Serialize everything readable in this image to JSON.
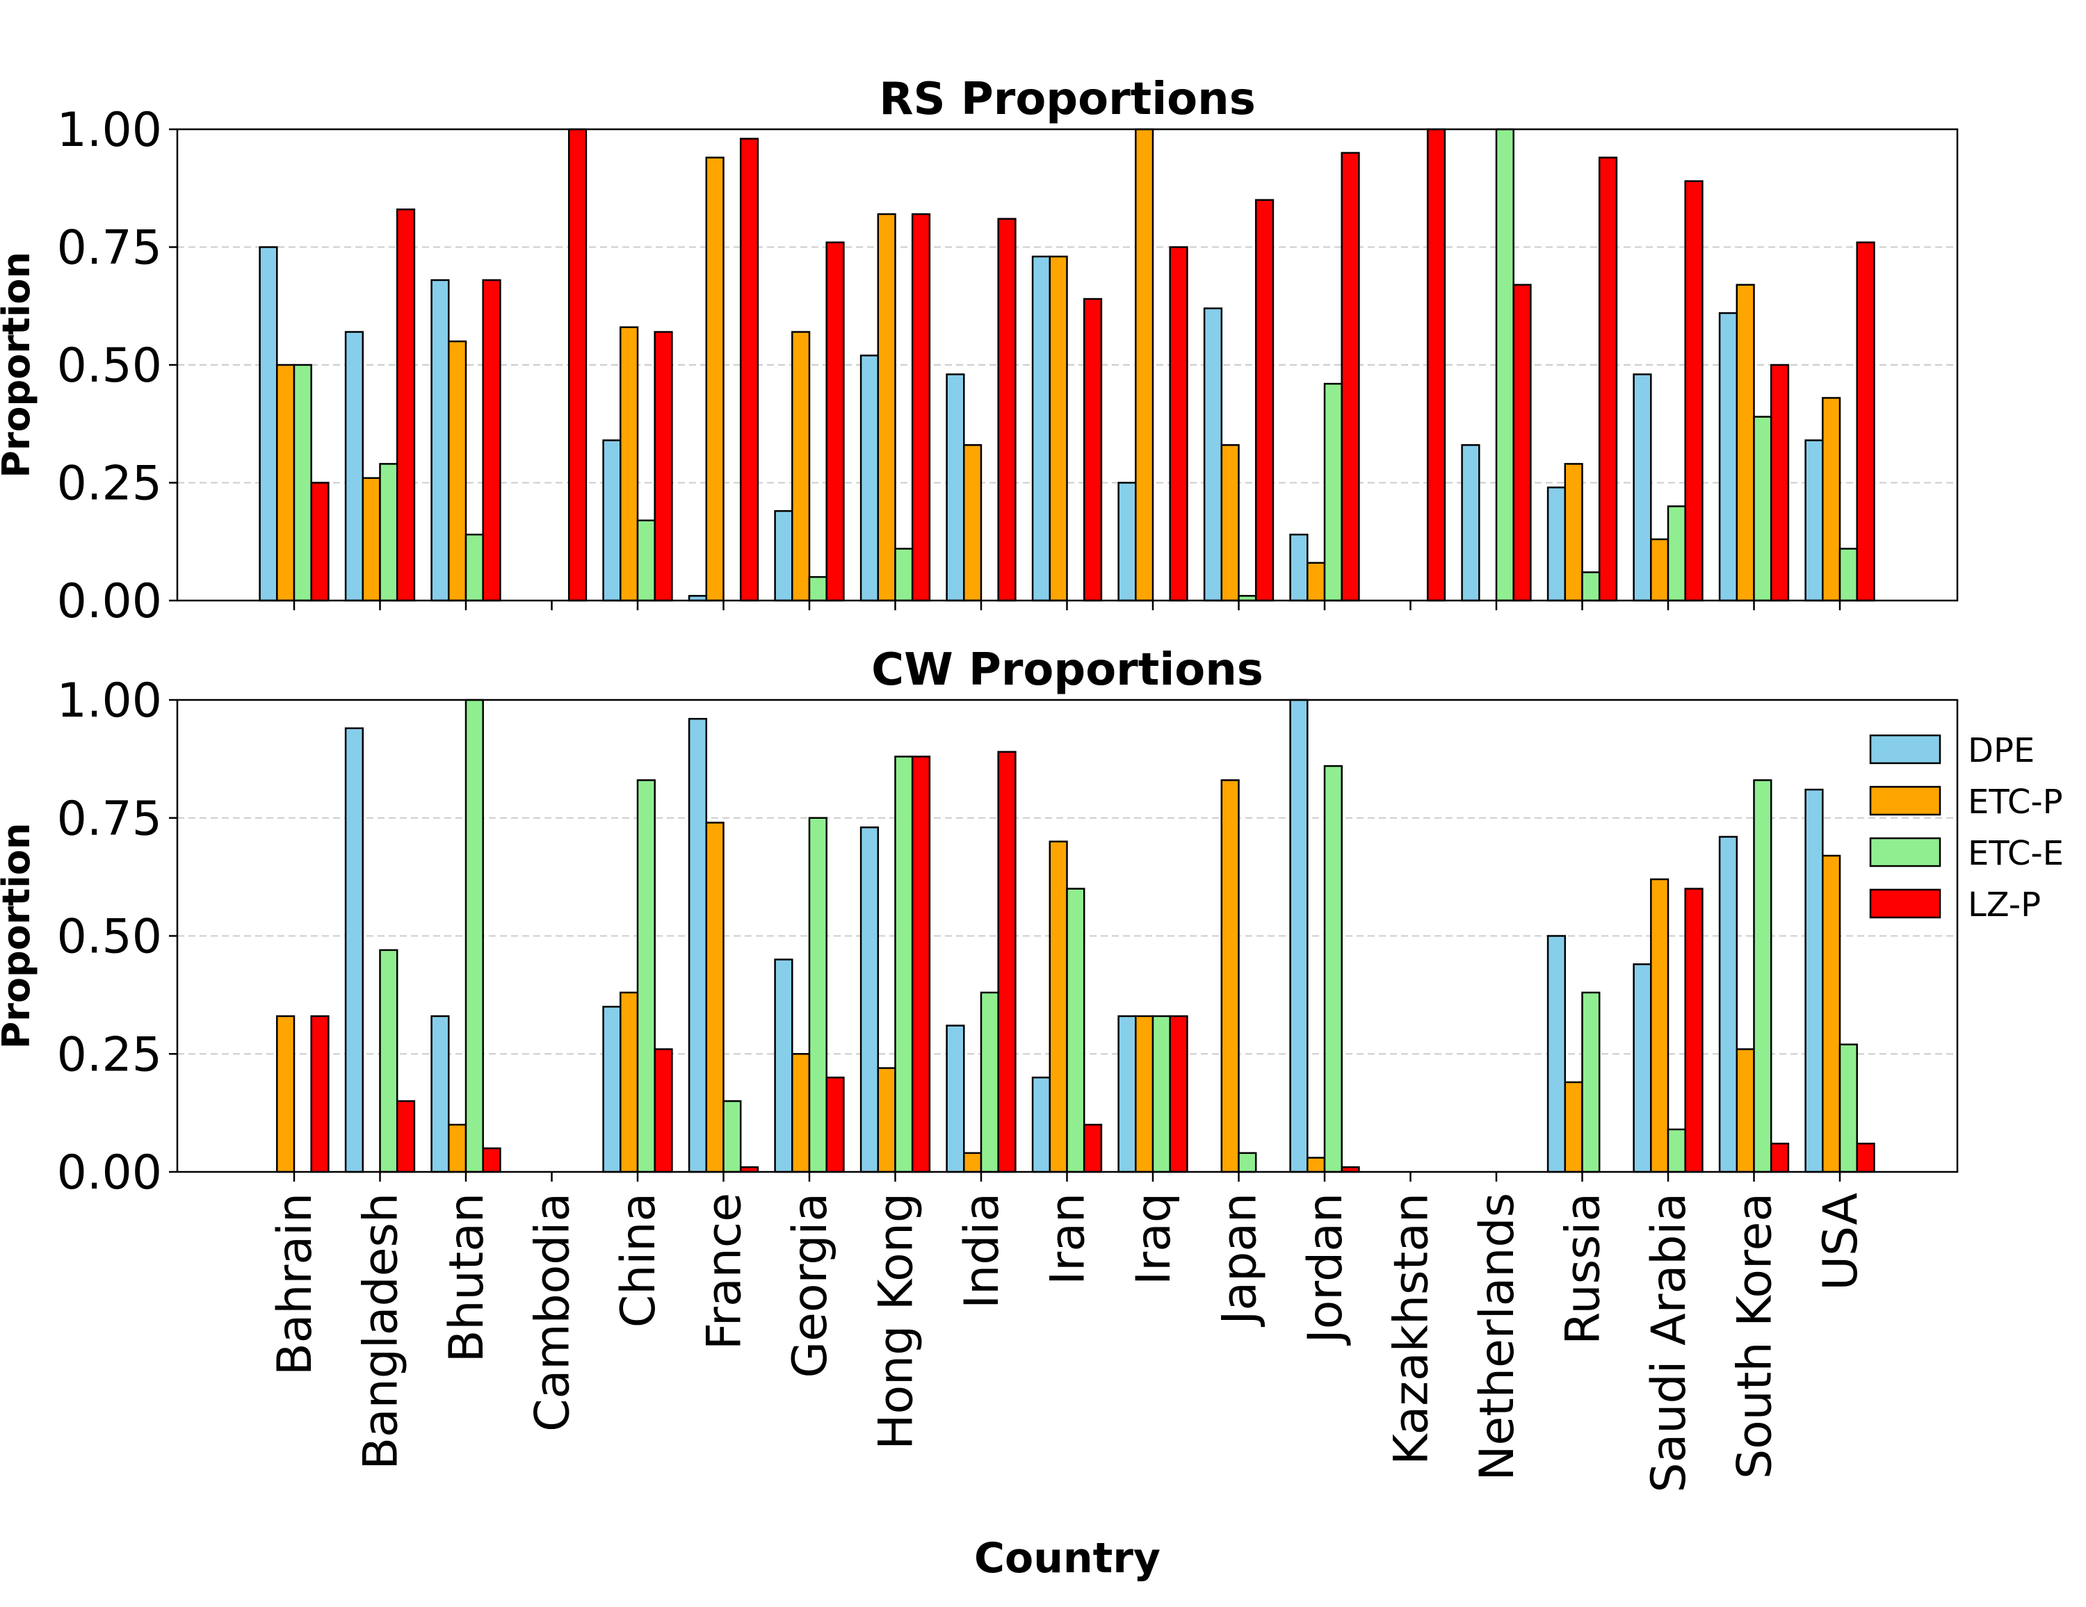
{
  "chart_data": [
    {
      "type": "bar",
      "title": "RS Proportions",
      "xlabel": "",
      "ylabel": "Proportion",
      "ylim": [
        0,
        1
      ],
      "yticks": [
        "0.00",
        "0.25",
        "0.50",
        "0.75",
        "1.00"
      ],
      "grid": true,
      "categories": [
        "Bahrain",
        "Bangladesh",
        "Bhutan",
        "Cambodia",
        "China",
        "France",
        "Georgia",
        "Hong Kong",
        "India",
        "Iran",
        "Iraq",
        "Japan",
        "Jordan",
        "Kazakhstan",
        "Netherlands",
        "Russia",
        "Saudi Arabia",
        "South Korea",
        "USA"
      ],
      "series": [
        {
          "name": "DPE",
          "color": "#87ceeb",
          "values": [
            0.75,
            0.57,
            0.68,
            0.0,
            0.34,
            0.01,
            0.19,
            0.52,
            0.48,
            0.73,
            0.25,
            0.62,
            0.14,
            0.0,
            0.33,
            0.24,
            0.48,
            0.61,
            0.34
          ]
        },
        {
          "name": "ETC-P",
          "color": "#ffa500",
          "values": [
            0.5,
            0.26,
            0.55,
            0.0,
            0.58,
            0.94,
            0.57,
            0.82,
            0.33,
            0.73,
            1.0,
            0.33,
            0.08,
            0.0,
            0.0,
            0.29,
            0.13,
            0.67,
            0.43
          ]
        },
        {
          "name": "ETC-E",
          "color": "#90ee90",
          "values": [
            0.5,
            0.29,
            0.14,
            0.0,
            0.17,
            0.0,
            0.05,
            0.11,
            0.0,
            0.0,
            0.0,
            0.01,
            0.46,
            0.0,
            1.0,
            0.06,
            0.2,
            0.39,
            0.11
          ]
        },
        {
          "name": "LZ-P",
          "color": "#ff0000",
          "values": [
            0.25,
            0.83,
            0.68,
            1.0,
            0.57,
            0.98,
            0.76,
            0.82,
            0.81,
            0.64,
            0.75,
            0.85,
            0.95,
            1.0,
            0.67,
            0.94,
            0.89,
            0.5,
            0.76
          ]
        }
      ]
    },
    {
      "type": "bar",
      "title": "CW Proportions",
      "xlabel": "Country",
      "ylabel": "Proportion",
      "ylim": [
        0,
        1
      ],
      "yticks": [
        "0.00",
        "0.25",
        "0.50",
        "0.75",
        "1.00"
      ],
      "grid": true,
      "legend_position": "right",
      "categories": [
        "Bahrain",
        "Bangladesh",
        "Bhutan",
        "Cambodia",
        "China",
        "France",
        "Georgia",
        "Hong Kong",
        "India",
        "Iran",
        "Iraq",
        "Japan",
        "Jordan",
        "Kazakhstan",
        "Netherlands",
        "Russia",
        "Saudi Arabia",
        "South Korea",
        "USA"
      ],
      "series": [
        {
          "name": "DPE",
          "color": "#87ceeb",
          "values": [
            0.0,
            0.94,
            0.33,
            0.0,
            0.35,
            0.96,
            0.45,
            0.73,
            0.31,
            0.2,
            0.33,
            0.0,
            1.0,
            0.0,
            0.0,
            0.5,
            0.44,
            0.71,
            0.81
          ]
        },
        {
          "name": "ETC-P",
          "color": "#ffa500",
          "values": [
            0.33,
            0.0,
            0.1,
            0.0,
            0.38,
            0.74,
            0.25,
            0.22,
            0.04,
            0.7,
            0.33,
            0.83,
            0.03,
            0.0,
            0.0,
            0.19,
            0.62,
            0.26,
            0.67
          ]
        },
        {
          "name": "ETC-E",
          "color": "#90ee90",
          "values": [
            0.0,
            0.47,
            1.0,
            0.0,
            0.83,
            0.15,
            0.75,
            0.88,
            0.38,
            0.6,
            0.33,
            0.04,
            0.86,
            0.0,
            0.0,
            0.38,
            0.09,
            0.83,
            0.27
          ]
        },
        {
          "name": "LZ-P",
          "color": "#ff0000",
          "values": [
            0.33,
            0.15,
            0.05,
            0.0,
            0.26,
            0.01,
            0.2,
            0.88,
            0.89,
            0.1,
            0.33,
            0.0,
            0.01,
            0.0,
            0.0,
            0.0,
            0.6,
            0.06,
            0.06
          ]
        }
      ]
    }
  ]
}
